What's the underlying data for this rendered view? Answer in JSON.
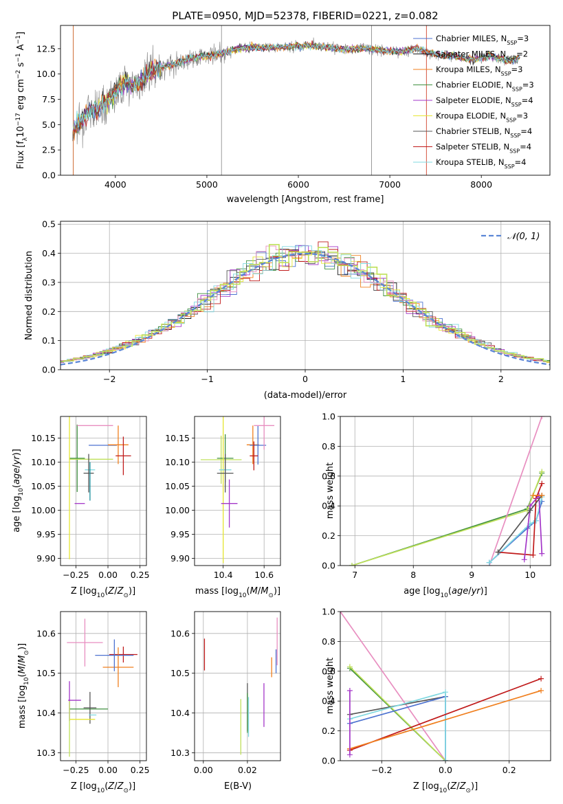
{
  "palette": [
    "#4c72d0",
    "#1a1a1a",
    "#f07f1e",
    "#3f8f3f",
    "#a335c8",
    "#e6e632",
    "#555555",
    "#c01a1a",
    "#7fd8e0",
    "#e88ec0",
    "#bfe05a",
    "#909090"
  ],
  "chart_data": [
    {
      "type": "line",
      "title": "PLATE=0950, MJD=52378, FIBERID=0221, z=0.082",
      "xlabel": "wavelength [Angstrom, rest frame]",
      "ylabel": "Flux [f_λ10^-17 erg cm^-2 s^-1 A^-1]",
      "xlim": [
        3400,
        8750
      ],
      "ylim": [
        0,
        14.8
      ],
      "xticks": [
        4000,
        5000,
        6000,
        7000,
        8000
      ],
      "yticks": [
        0.0,
        2.5,
        5.0,
        7.5,
        10.0,
        12.5
      ],
      "xtick_labels": [
        "4000",
        "5000",
        "6000",
        "7000",
        "8000"
      ],
      "ytick_labels": [
        "0.0",
        "2.5",
        "5.0",
        "7.5",
        "10.0",
        "12.5"
      ],
      "grid": false,
      "legend_position": "right",
      "continuum": {
        "x": [
          3550,
          3700,
          3800,
          3900,
          4000,
          4100,
          4200,
          4300,
          4400,
          4500,
          4700,
          4900,
          5100,
          5300,
          5500,
          5700,
          5900,
          6100,
          6300,
          6500,
          6700,
          6900,
          7100,
          7300,
          7500,
          7700,
          7900,
          8100,
          8300,
          8400
        ],
        "y": [
          4.6,
          6.2,
          6.5,
          7.3,
          8.2,
          9.2,
          8.8,
          9.4,
          10.4,
          10.6,
          11.2,
          11.7,
          11.9,
          12.4,
          12.7,
          12.6,
          12.7,
          12.8,
          12.7,
          12.4,
          12.6,
          12.3,
          12.2,
          12.5,
          11.9,
          11.8,
          11.4,
          11.8,
          11.3,
          11.6
        ]
      },
      "spikes_x": [
        3540,
        5160,
        6800,
        7400
      ],
      "series": [
        {
          "name": "Chabrier MILES, N_SSP=3",
          "color": "#4c72d0"
        },
        {
          "name": "Salpeter MILES, N_SSP=2",
          "color": "#1a1a1a"
        },
        {
          "name": "Kroupa MILES, N_SSP=3",
          "color": "#f07f1e"
        },
        {
          "name": "Chabrier ELODIE, N_SSP=3",
          "color": "#3f8f3f"
        },
        {
          "name": "Salpeter ELODIE, N_SSP=4",
          "color": "#a335c8"
        },
        {
          "name": "Kroupa ELODIE, N_SSP=3",
          "color": "#e6e632"
        },
        {
          "name": "Chabrier STELIB, N_SSP=4",
          "color": "#555555"
        },
        {
          "name": "Salpeter STELIB, N_SSP=4",
          "color": "#c01a1a"
        },
        {
          "name": "Kroupa STELIB, N_SSP=4",
          "color": "#7fd8e0"
        }
      ]
    },
    {
      "type": "histogram",
      "xlabel": "(data-model)/error",
      "ylabel": "Normed distribution",
      "xlim": [
        -2.5,
        2.5
      ],
      "ylim": [
        0,
        0.51
      ],
      "xticks": [
        -2,
        -1,
        0,
        1,
        2
      ],
      "xtick_labels": [
        "−2",
        "−1",
        "0",
        "1",
        "2"
      ],
      "yticks": [
        0.0,
        0.1,
        0.2,
        0.3,
        0.4,
        0.5
      ],
      "ytick_labels": [
        "0.0",
        "0.1",
        "0.2",
        "0.3",
        "0.4",
        "0.5"
      ],
      "grid": true,
      "legend_position": "top-right",
      "reference_curve": {
        "name": "𝒩(0, 1)",
        "color": "#5b86d6"
      },
      "bin_width": 0.1
    },
    {
      "type": "errorbar",
      "xlabel": "Z [log10(Z/Z⊙)]",
      "ylabel": "age [log10(age/yr)]",
      "xlim": [
        -0.37,
        0.3
      ],
      "ylim": [
        9.885,
        10.195
      ],
      "xticks": [
        -0.25,
        0.0,
        0.25
      ],
      "xtick_labels": [
        "−0.25",
        "0.00",
        "0.25"
      ],
      "yticks": [
        9.9,
        9.95,
        10.0,
        10.05,
        10.1,
        10.15
      ],
      "ytick_labels": [
        "9.90",
        "9.95",
        "10.00",
        "10.05",
        "10.10",
        "10.15"
      ],
      "grid": true,
      "points": [
        {
          "x": -0.04,
          "y": 10.135,
          "xerr": 0.11,
          "yerr": 0.0,
          "color": "#4c72d0"
        },
        {
          "x": 0.08,
          "y": 10.136,
          "xerr": 0.08,
          "yerr": 0.04,
          "color": "#f07f1e"
        },
        {
          "x": 0.12,
          "y": 10.113,
          "xerr": 0.06,
          "yerr": 0.04,
          "color": "#c01a1a"
        },
        {
          "x": -0.24,
          "y": 10.108,
          "xerr": 0.06,
          "yerr": 0.07,
          "color": "#3f8f3f"
        },
        {
          "x": -0.3,
          "y": 10.108,
          "xerr": 0.0,
          "yerr": 0.21,
          "color": "#e6e632"
        },
        {
          "x": -0.13,
          "y": 10.106,
          "xerr": 0.17,
          "yerr": 0.0,
          "color": "#bfe05a"
        },
        {
          "x": -0.14,
          "y": 10.084,
          "xerr": 0.04,
          "yerr": 0.0,
          "color": "#7fd8e0"
        },
        {
          "x": -0.15,
          "y": 10.077,
          "xerr": 0.04,
          "yerr": 0.04,
          "color": "#555555"
        },
        {
          "x": -0.14,
          "y": 10.06,
          "xerr": 0.0,
          "yerr": 0.04,
          "color": "#1a8f9c"
        },
        {
          "x": -0.22,
          "y": 10.014,
          "xerr": 0.04,
          "yerr": 0.0,
          "color": "#a335c8"
        },
        {
          "x": -0.1,
          "y": 10.176,
          "xerr": 0.14,
          "yerr": 0.0,
          "color": "#e88ec0"
        }
      ]
    },
    {
      "type": "errorbar",
      "xlabel": "mass [log10(M/M⊙)]",
      "ylabel": "",
      "xlim": [
        10.26,
        10.68
      ],
      "ylim": [
        9.885,
        10.195
      ],
      "xticks": [
        10.4,
        10.6
      ],
      "xtick_labels": [
        "10.4",
        "10.6"
      ],
      "yticks": [
        9.9,
        9.95,
        10.0,
        10.05,
        10.1,
        10.15
      ],
      "ytick_labels": [
        "9.90",
        "9.95",
        "10.00",
        "10.05",
        "10.10",
        "10.15"
      ],
      "grid": true,
      "points": [
        {
          "x": 10.545,
          "y": 10.136,
          "xerr": 0.03,
          "yerr": 0.04,
          "color": "#f07f1e"
        },
        {
          "x": 10.57,
          "y": 10.135,
          "xerr": 0.04,
          "yerr": 0.04,
          "color": "#4c72d0"
        },
        {
          "x": 10.55,
          "y": 10.113,
          "xerr": 0.02,
          "yerr": 0.03,
          "color": "#c01a1a"
        },
        {
          "x": 10.39,
          "y": 10.105,
          "xerr": 0.1,
          "yerr": 0.05,
          "color": "#bfe05a"
        },
        {
          "x": 10.41,
          "y": 10.108,
          "xerr": 0.04,
          "yerr": 0.05,
          "color": "#3f8f3f"
        },
        {
          "x": 10.4,
          "y": 10.09,
          "xerr": 0.0,
          "yerr": 0.2,
          "color": "#e6e632"
        },
        {
          "x": 10.41,
          "y": 10.084,
          "xerr": 0.03,
          "yerr": 0.0,
          "color": "#7fd8e0"
        },
        {
          "x": 10.41,
          "y": 10.077,
          "xerr": 0.04,
          "yerr": 0.04,
          "color": "#555555"
        },
        {
          "x": 10.43,
          "y": 10.014,
          "xerr": 0.04,
          "yerr": 0.05,
          "color": "#a335c8"
        },
        {
          "x": 10.6,
          "y": 10.176,
          "xerr": 0.05,
          "yerr": 0.05,
          "color": "#e88ec0"
        }
      ]
    },
    {
      "type": "line",
      "xlabel": "age [log10(age/yr)]",
      "ylabel": "mass weight",
      "xlim": [
        6.75,
        10.35
      ],
      "ylim": [
        0,
        1.0
      ],
      "xticks": [
        7,
        8,
        9,
        10
      ],
      "xtick_labels": [
        "7",
        "8",
        "9",
        "10"
      ],
      "yticks": [
        0.0,
        0.2,
        0.4,
        0.6,
        0.8,
        1.0
      ],
      "ytick_labels": [
        "0.0",
        "0.2",
        "0.4",
        "0.6",
        "0.8",
        "1.0"
      ],
      "grid": true,
      "series": [
        {
          "color": "#3f8f3f",
          "x": [
            6.95,
            9.95,
            10.2
          ],
          "y": [
            0.0,
            0.38,
            0.62
          ]
        },
        {
          "color": "#bfe05a",
          "x": [
            6.95,
            9.95,
            10.2
          ],
          "y": [
            0.0,
            0.37,
            0.63
          ]
        },
        {
          "color": "#e88ec0",
          "x": [
            9.3,
            10.2
          ],
          "y": [
            0.0,
            1.0
          ]
        },
        {
          "color": "#4c72d0",
          "x": [
            9.3,
            9.95,
            10.1,
            10.2
          ],
          "y": [
            0.02,
            0.25,
            0.3,
            0.43
          ]
        },
        {
          "color": "#7fd8e0",
          "x": [
            9.3,
            10.0,
            10.1,
            10.2
          ],
          "y": [
            0.02,
            0.28,
            0.3,
            0.46
          ]
        },
        {
          "color": "#c01a1a",
          "x": [
            9.45,
            10.05,
            10.1,
            10.2
          ],
          "y": [
            0.09,
            0.07,
            0.45,
            0.55
          ]
        },
        {
          "color": "#a335c8",
          "x": [
            9.9,
            10.0,
            10.15,
            10.2
          ],
          "y": [
            0.04,
            0.4,
            0.47,
            0.08
          ]
        },
        {
          "color": "#555555",
          "x": [
            9.45,
            10.0,
            10.2
          ],
          "y": [
            0.09,
            0.37,
            0.47
          ]
        },
        {
          "color": "#f07f1e",
          "x": [
            10.05,
            10.2
          ],
          "y": [
            0.47,
            0.47
          ]
        }
      ]
    },
    {
      "type": "errorbar",
      "xlabel": "Z [log10(Z/Z⊙)]",
      "ylabel": "mass [log10(M/M⊙)]",
      "xlim": [
        -0.37,
        0.3
      ],
      "ylim": [
        10.28,
        10.655
      ],
      "xticks": [
        -0.25,
        0.0,
        0.25
      ],
      "xtick_labels": [
        "−0.25",
        "0.00",
        "0.25"
      ],
      "yticks": [
        10.3,
        10.4,
        10.5,
        10.6
      ],
      "ytick_labels": [
        "10.3",
        "10.4",
        "10.5",
        "10.6"
      ],
      "grid": true,
      "points": [
        {
          "x": 0.12,
          "y": 10.547,
          "xerr": 0.11,
          "yerr": 0.02,
          "color": "#c01a1a"
        },
        {
          "x": 0.08,
          "y": 10.515,
          "xerr": 0.12,
          "yerr": 0.05,
          "color": "#f07f1e"
        },
        {
          "x": 0.05,
          "y": 10.545,
          "xerr": 0.15,
          "yerr": 0.04,
          "color": "#4c72d0"
        },
        {
          "x": -0.18,
          "y": 10.577,
          "xerr": 0.14,
          "yerr": 0.06,
          "color": "#e88ec0"
        },
        {
          "x": -0.3,
          "y": 10.43,
          "xerr": 0.0,
          "yerr": 0.05,
          "color": "#a335c8"
        },
        {
          "x": -0.26,
          "y": 10.432,
          "xerr": 0.05,
          "yerr": 0.0,
          "color": "#a335c8"
        },
        {
          "x": -0.15,
          "y": 10.41,
          "xerr": 0.15,
          "yerr": 0.0,
          "color": "#3f8f3f"
        },
        {
          "x": -0.14,
          "y": 10.413,
          "xerr": 0.05,
          "yerr": 0.04,
          "color": "#555555"
        },
        {
          "x": -0.12,
          "y": 10.395,
          "xerr": 0.03,
          "yerr": 0.0,
          "color": "#7fd8e0"
        },
        {
          "x": -0.2,
          "y": 10.384,
          "xerr": 0.1,
          "yerr": 0.0,
          "color": "#e6e632"
        },
        {
          "x": -0.3,
          "y": 10.36,
          "xerr": 0.0,
          "yerr": 0.07,
          "color": "#bfe05a"
        }
      ]
    },
    {
      "type": "errorbar",
      "xlabel": "E(B-V)",
      "ylabel": "",
      "xlim": [
        -0.004,
        0.035
      ],
      "ylim": [
        10.28,
        10.655
      ],
      "xticks": [
        0.0,
        0.02
      ],
      "xtick_labels": [
        "0.00",
        "0.02"
      ],
      "yticks": [
        10.3,
        10.4,
        10.5,
        10.6
      ],
      "ytick_labels": [
        "10.3",
        "10.4",
        "10.5",
        "10.6"
      ],
      "grid": true,
      "points": [
        {
          "x": 0.0005,
          "y": 10.547,
          "xerr": 0.0,
          "yerr": 0.04,
          "color": "#c01a1a"
        },
        {
          "x": 0.031,
          "y": 10.515,
          "xerr": 0.0,
          "yerr": 0.025,
          "color": "#f07f1e"
        },
        {
          "x": 0.0335,
          "y": 10.58,
          "xerr": 0.0,
          "yerr": 0.06,
          "color": "#e88ec0"
        },
        {
          "x": 0.033,
          "y": 10.53,
          "xerr": 0.0,
          "yerr": 0.03,
          "color": "#4c72d0"
        },
        {
          "x": 0.0275,
          "y": 10.42,
          "xerr": 0.0,
          "yerr": 0.055,
          "color": "#a335c8"
        },
        {
          "x": 0.02,
          "y": 10.415,
          "xerr": 0.0,
          "yerr": 0.06,
          "color": "#555555"
        },
        {
          "x": 0.02,
          "y": 10.4,
          "xerr": 0.0,
          "yerr": 0.05,
          "color": "#3f8f3f"
        },
        {
          "x": 0.0205,
          "y": 10.39,
          "xerr": 0.0,
          "yerr": 0.05,
          "color": "#7fd8e0"
        },
        {
          "x": 0.017,
          "y": 10.365,
          "xerr": 0.0,
          "yerr": 0.07,
          "color": "#bfe05a"
        }
      ]
    },
    {
      "type": "line",
      "xlabel": "Z [log10(Z/Z⊙)]",
      "ylabel": "mass weight",
      "xlim": [
        -0.33,
        0.33
      ],
      "ylim": [
        0,
        1.0
      ],
      "xticks": [
        -0.2,
        0.0,
        0.2
      ],
      "xtick_labels": [
        "−0.2",
        "0.0",
        "0.2"
      ],
      "yticks": [
        0.0,
        0.2,
        0.4,
        0.6,
        0.8,
        1.0
      ],
      "ytick_labels": [
        "0.0",
        "0.2",
        "0.4",
        "0.6",
        "0.8",
        "1.0"
      ],
      "grid": true,
      "series": [
        {
          "color": "#e88ec0",
          "x": [
            -0.33,
            0.0
          ],
          "y": [
            1.0,
            0.0
          ]
        },
        {
          "color": "#3f8f3f",
          "x": [
            -0.3,
            0.0
          ],
          "y": [
            0.62,
            0.0
          ]
        },
        {
          "color": "#bfe05a",
          "x": [
            -0.3,
            0.0
          ],
          "y": [
            0.63,
            0.0
          ]
        },
        {
          "color": "#555555",
          "x": [
            -0.3,
            0.0
          ],
          "y": [
            0.31,
            0.43
          ]
        },
        {
          "color": "#4c72d0",
          "x": [
            -0.3,
            0.0,
            0.0
          ],
          "y": [
            0.25,
            0.43,
            0.0
          ]
        },
        {
          "color": "#7fd8e0",
          "x": [
            -0.3,
            0.0,
            0.0
          ],
          "y": [
            0.28,
            0.46,
            0.0
          ]
        },
        {
          "color": "#c01a1a",
          "x": [
            -0.3,
            0.3
          ],
          "y": [
            0.07,
            0.55
          ]
        },
        {
          "color": "#f07f1e",
          "x": [
            -0.3,
            0.3
          ],
          "y": [
            0.08,
            0.47
          ]
        },
        {
          "color": "#a335c8",
          "x": [
            -0.3,
            -0.3
          ],
          "y": [
            0.04,
            0.47
          ]
        }
      ]
    }
  ]
}
